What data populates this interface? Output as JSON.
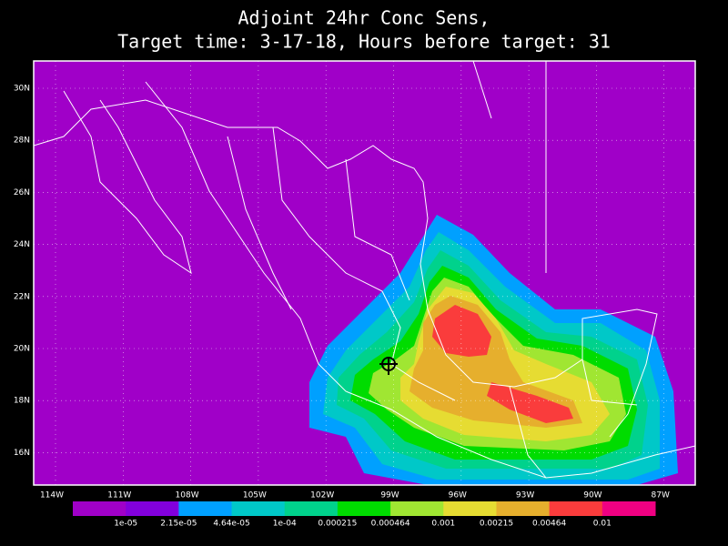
{
  "title": [
    "Adjoint 24hr Conc Sens,",
    "Target time: 3-17-18, Hours before target: 31"
  ],
  "lat_labels": [
    "30N",
    "28N",
    "26N",
    "24N",
    "22N",
    "20N",
    "18N",
    "16N"
  ],
  "lon_labels": [
    "114W",
    "111W",
    "108W",
    "105W",
    "102W",
    "99W",
    "96W",
    "93W",
    "90W",
    "87W"
  ],
  "colorbar": {
    "colors": [
      "#a000c8",
      "#8200dc",
      "#00a0ff",
      "#00c8c8",
      "#00d28c",
      "#00dc00",
      "#a0e632",
      "#e6dc32",
      "#e6af2d",
      "#fa3c3c",
      "#f00082"
    ],
    "labels": [
      "1e-05",
      "2.15e-05",
      "4.64e-05",
      "1e-04",
      "0.000215",
      "0.000464",
      "0.001",
      "0.00215",
      "0.00464",
      "0.01"
    ]
  }
}
